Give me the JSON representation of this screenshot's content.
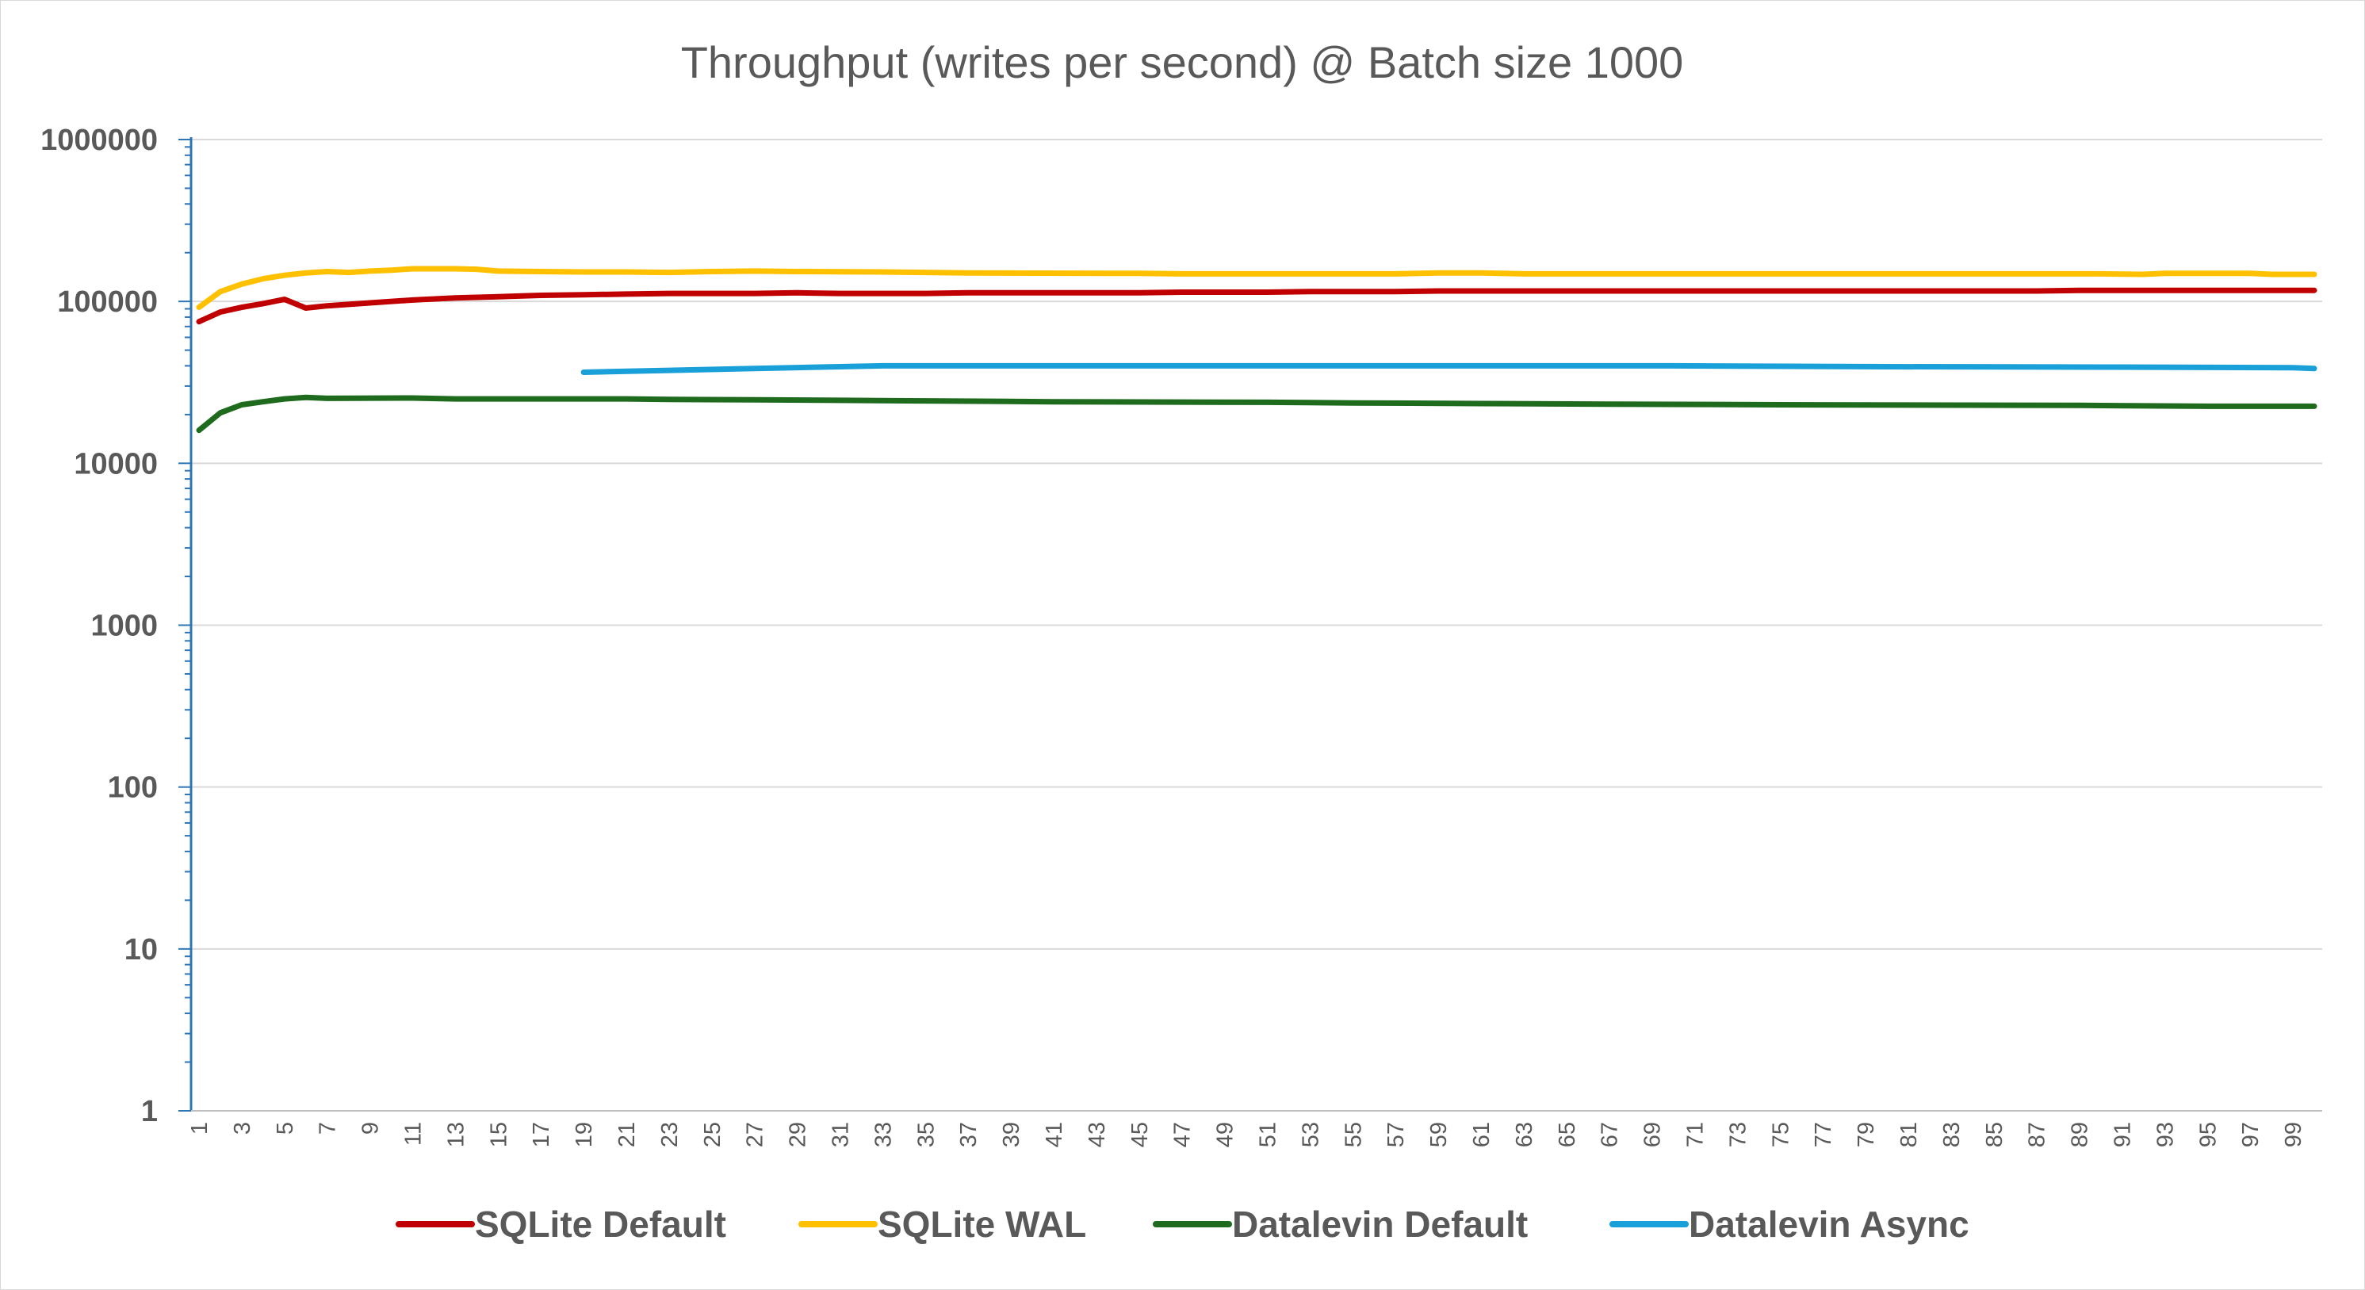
{
  "chart_data": {
    "type": "line",
    "title": "Throughput (writes per second) @ Batch size 1000",
    "xlabel": "",
    "ylabel": "",
    "y_scale": "log",
    "ylim": [
      1,
      1000000
    ],
    "y_ticks": [
      1,
      10,
      100,
      1000,
      10000,
      100000,
      1000000
    ],
    "y_tick_labels": [
      "1",
      "10",
      "100",
      "1000",
      "10000",
      "100000",
      "1000000"
    ],
    "x_range": [
      1,
      100
    ],
    "x_tick_labels": [
      "1",
      "3",
      "5",
      "7",
      "9",
      "11",
      "13",
      "15",
      "17",
      "19",
      "21",
      "23",
      "25",
      "27",
      "29",
      "31",
      "33",
      "35",
      "37",
      "39",
      "41",
      "43",
      "45",
      "47",
      "49",
      "51",
      "53",
      "55",
      "57",
      "59",
      "61",
      "63",
      "65",
      "67",
      "69",
      "71",
      "73",
      "75",
      "77",
      "79",
      "81",
      "83",
      "85",
      "87",
      "89",
      "91",
      "93",
      "95",
      "97",
      "99"
    ],
    "grid": true,
    "legend_position": "bottom",
    "series": [
      {
        "name": "SQLite Default",
        "color": "#c00000",
        "points": [
          [
            1,
            75000
          ],
          [
            2,
            86000
          ],
          [
            3,
            92000
          ],
          [
            4,
            97000
          ],
          [
            5,
            103000
          ],
          [
            6,
            91000
          ],
          [
            7,
            94000
          ],
          [
            9,
            98000
          ],
          [
            11,
            102000
          ],
          [
            13,
            105000
          ],
          [
            15,
            107000
          ],
          [
            17,
            109000
          ],
          [
            19,
            110000
          ],
          [
            21,
            111000
          ],
          [
            23,
            112000
          ],
          [
            25,
            112000
          ],
          [
            27,
            112000
          ],
          [
            29,
            113000
          ],
          [
            31,
            112000
          ],
          [
            35,
            112000
          ],
          [
            37,
            113000
          ],
          [
            45,
            113000
          ],
          [
            47,
            114000
          ],
          [
            51,
            114000
          ],
          [
            53,
            115000
          ],
          [
            57,
            115000
          ],
          [
            59,
            116000
          ],
          [
            70,
            116000
          ],
          [
            80,
            116000
          ],
          [
            87,
            116000
          ],
          [
            89,
            117000
          ],
          [
            100,
            117000
          ]
        ]
      },
      {
        "name": "SQLite WAL",
        "color": "#ffc000",
        "points": [
          [
            1,
            92000
          ],
          [
            2,
            115000
          ],
          [
            3,
            128000
          ],
          [
            4,
            138000
          ],
          [
            5,
            145000
          ],
          [
            6,
            150000
          ],
          [
            7,
            153000
          ],
          [
            8,
            151000
          ],
          [
            9,
            154000
          ],
          [
            10,
            156000
          ],
          [
            11,
            159000
          ],
          [
            13,
            159000
          ],
          [
            14,
            158000
          ],
          [
            15,
            154000
          ],
          [
            17,
            153000
          ],
          [
            19,
            152000
          ],
          [
            21,
            152000
          ],
          [
            23,
            151000
          ],
          [
            25,
            153000
          ],
          [
            27,
            154000
          ],
          [
            29,
            153000
          ],
          [
            33,
            152000
          ],
          [
            35,
            151000
          ],
          [
            37,
            150000
          ],
          [
            45,
            149000
          ],
          [
            47,
            148000
          ],
          [
            57,
            148000
          ],
          [
            59,
            150000
          ],
          [
            61,
            150000
          ],
          [
            63,
            148000
          ],
          [
            80,
            148000
          ],
          [
            90,
            148000
          ],
          [
            92,
            147000
          ],
          [
            93,
            149000
          ],
          [
            97,
            149000
          ],
          [
            98,
            147000
          ],
          [
            100,
            147000
          ]
        ]
      },
      {
        "name": "Datalevin Default",
        "color": "#1e6b1e",
        "points": [
          [
            1,
            16000
          ],
          [
            2,
            20500
          ],
          [
            3,
            23000
          ],
          [
            4,
            24000
          ],
          [
            5,
            25000
          ],
          [
            6,
            25500
          ],
          [
            7,
            25200
          ],
          [
            11,
            25300
          ],
          [
            13,
            25000
          ],
          [
            21,
            25000
          ],
          [
            23,
            24800
          ],
          [
            27,
            24700
          ],
          [
            31,
            24500
          ],
          [
            35,
            24300
          ],
          [
            41,
            24000
          ],
          [
            51,
            23800
          ],
          [
            55,
            23600
          ],
          [
            61,
            23400
          ],
          [
            67,
            23200
          ],
          [
            75,
            23000
          ],
          [
            89,
            22800
          ],
          [
            95,
            22500
          ],
          [
            100,
            22500
          ]
        ]
      },
      {
        "name": "Datalevin Async",
        "color": "#1aa0d8",
        "points": [
          [
            19,
            36500
          ],
          [
            23,
            37500
          ],
          [
            27,
            38500
          ],
          [
            31,
            39500
          ],
          [
            33,
            40000
          ],
          [
            70,
            40000
          ],
          [
            80,
            39500
          ],
          [
            90,
            39300
          ],
          [
            99,
            39000
          ],
          [
            100,
            38500
          ]
        ]
      }
    ]
  }
}
